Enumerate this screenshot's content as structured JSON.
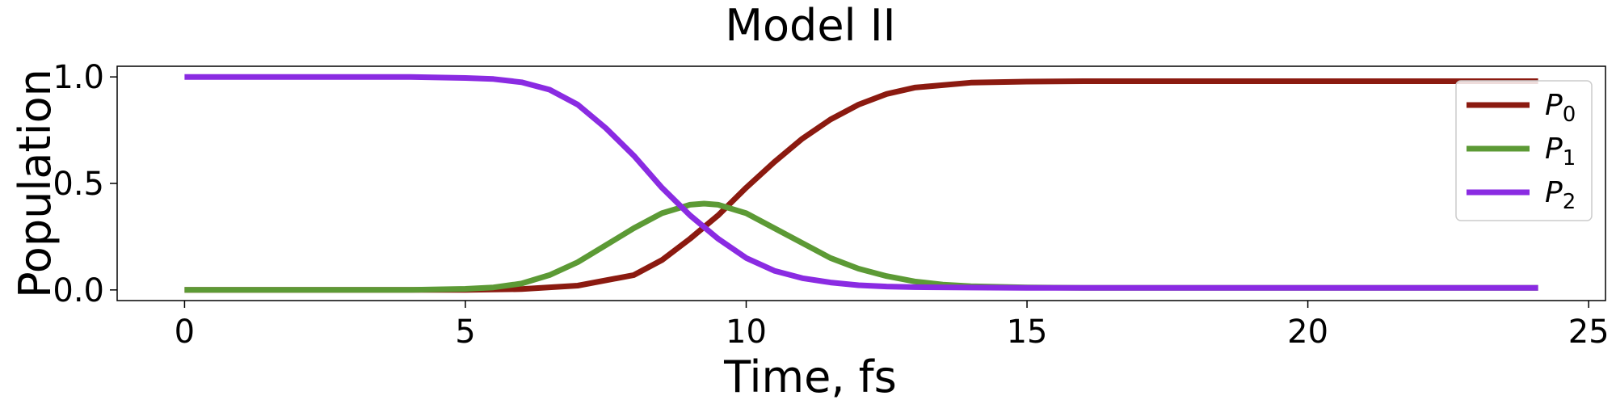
{
  "chart_data": {
    "type": "line",
    "title": "Model II",
    "xlabel": "Time, fs",
    "ylabel": "Population",
    "xlim": [
      -1.2,
      25.3
    ],
    "ylim": [
      -0.05,
      1.05
    ],
    "xticks": [
      0,
      5,
      10,
      15,
      20,
      25
    ],
    "xtick_labels": [
      "0",
      "5",
      "10",
      "15",
      "20",
      "25"
    ],
    "yticks": [
      0.0,
      0.5,
      1.0
    ],
    "ytick_labels": [
      "0.0",
      "0.5",
      "1.0"
    ],
    "grid": false,
    "legend_position": "top-right",
    "series": [
      {
        "name": "P",
        "subscript": "0",
        "color": "#8b1a10",
        "x": [
          0,
          2,
          4,
          5,
          6,
          7,
          8,
          8.5,
          9,
          9.5,
          10,
          10.5,
          11,
          11.5,
          12,
          12.5,
          13,
          14,
          15,
          16,
          18,
          20,
          22,
          24.1
        ],
        "y": [
          0.0,
          0.0,
          0.0,
          0.0,
          0.004,
          0.02,
          0.07,
          0.14,
          0.24,
          0.35,
          0.48,
          0.6,
          0.71,
          0.8,
          0.87,
          0.92,
          0.95,
          0.973,
          0.978,
          0.98,
          0.98,
          0.98,
          0.98,
          0.98
        ]
      },
      {
        "name": "P",
        "subscript": "1",
        "color": "#5c9a35",
        "x": [
          0,
          2,
          4,
          5,
          5.5,
          6,
          6.5,
          7,
          7.5,
          8,
          8.5,
          9,
          9.25,
          9.5,
          10,
          10.5,
          11,
          11.5,
          12,
          12.5,
          13,
          13.5,
          14,
          15,
          16,
          18,
          20,
          22,
          24.1
        ],
        "y": [
          0.0,
          0.0,
          0.0,
          0.005,
          0.012,
          0.03,
          0.07,
          0.13,
          0.21,
          0.29,
          0.36,
          0.4,
          0.405,
          0.4,
          0.36,
          0.29,
          0.22,
          0.15,
          0.1,
          0.065,
          0.04,
          0.025,
          0.017,
          0.012,
          0.01,
          0.01,
          0.01,
          0.01,
          0.01
        ]
      },
      {
        "name": "P",
        "subscript": "2",
        "color": "#8a2be2",
        "x": [
          0,
          2,
          4,
          5,
          5.5,
          6,
          6.5,
          7,
          7.5,
          8,
          8.5,
          9,
          9.5,
          10,
          10.5,
          11,
          11.5,
          12,
          12.5,
          13,
          14,
          15,
          16,
          18,
          20,
          22,
          24.1
        ],
        "y": [
          1.0,
          1.0,
          1.0,
          0.995,
          0.99,
          0.975,
          0.94,
          0.87,
          0.76,
          0.63,
          0.48,
          0.35,
          0.24,
          0.15,
          0.09,
          0.055,
          0.035,
          0.022,
          0.016,
          0.013,
          0.011,
          0.01,
          0.01,
          0.01,
          0.01,
          0.01,
          0.01
        ]
      }
    ]
  }
}
